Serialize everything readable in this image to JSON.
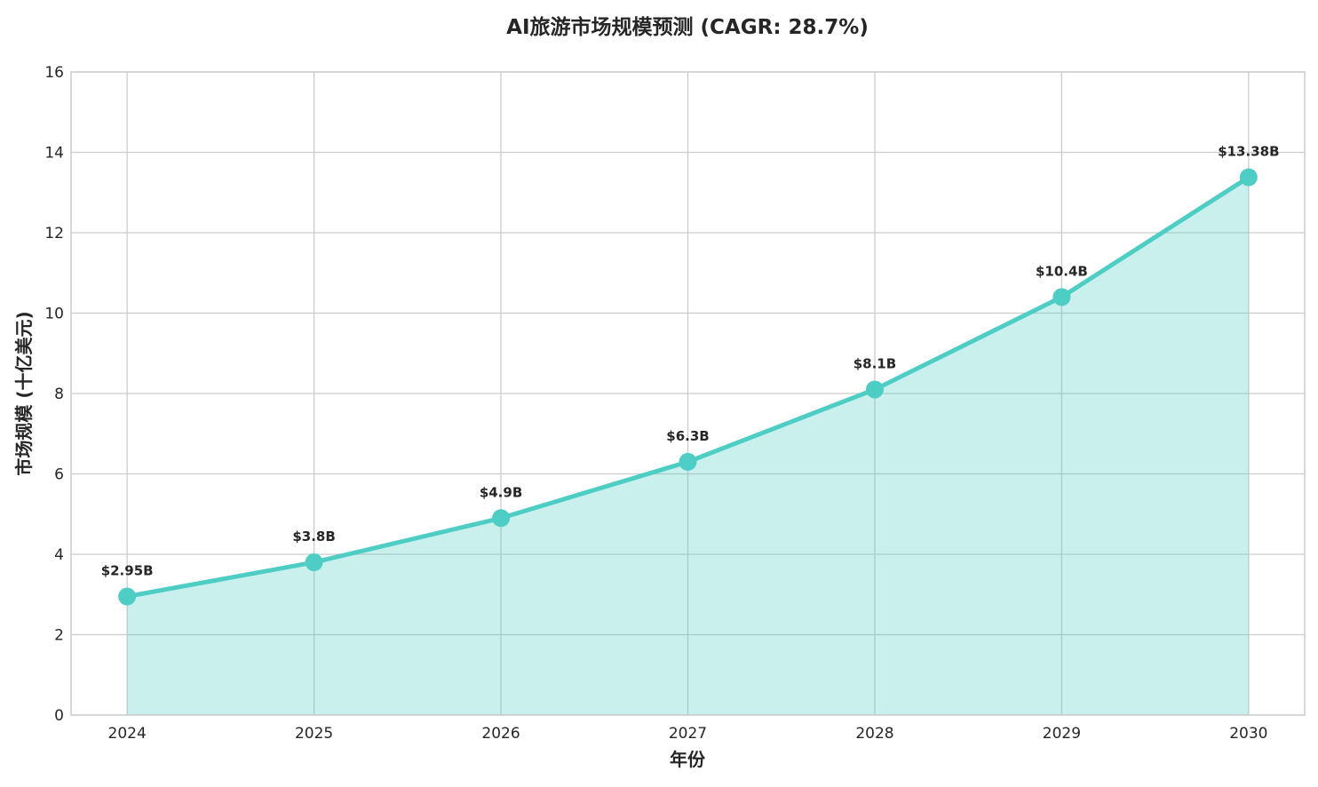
{
  "chart_data": {
    "type": "area",
    "title": "AI旅游市场规模预测 (CAGR: 28.7%)",
    "xlabel": "年份",
    "ylabel": "市场规模 (十亿美元)",
    "x": [
      2024,
      2025,
      2026,
      2027,
      2028,
      2029,
      2030
    ],
    "x_tick_labels": [
      "2024",
      "2025",
      "2026",
      "2027",
      "2028",
      "2029",
      "2030"
    ],
    "series": [
      {
        "values": [
          2.95,
          3.8,
          4.9,
          6.3,
          8.1,
          10.4,
          13.38
        ],
        "data_labels": [
          "$2.95B",
          "$3.8B",
          "$4.9B",
          "$6.3B",
          "$8.1B",
          "$10.4B",
          "$13.38B"
        ]
      }
    ],
    "xlim": [
      2023.7,
      2030.3
    ],
    "ylim": [
      0,
      16
    ],
    "y_ticks": [
      0,
      2,
      4,
      6,
      8,
      10,
      12,
      14,
      16
    ],
    "grid": true,
    "markers": true,
    "colors": {
      "line": "#4ECDC4",
      "fill": "#C7EDE9",
      "grid": "#CCCCCC"
    }
  }
}
